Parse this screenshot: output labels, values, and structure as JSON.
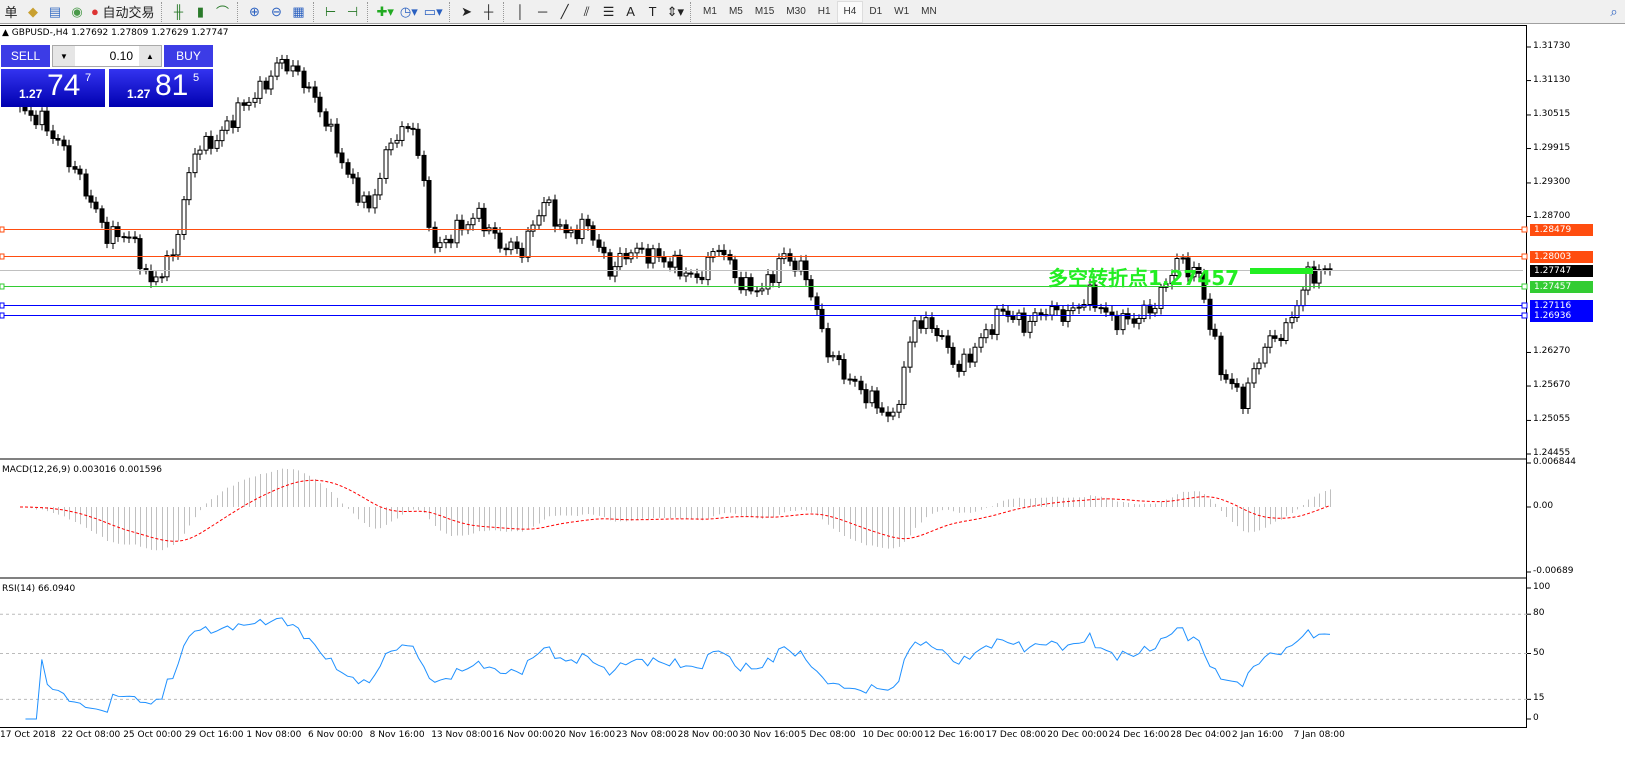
{
  "toolbar": {
    "left_fragment": "单",
    "auto_trade_label": "自动交易",
    "icons": [
      "folder-icon",
      "profile-icon",
      "signal-icon",
      "auto-trade-icon",
      "bar-chart-icon",
      "candlestick-icon",
      "line-chart-icon",
      "zoom-in-icon",
      "zoom-out-icon",
      "tile-windows-icon",
      "chart-shift-icon",
      "autoscroll-icon",
      "new-chart-icon",
      "periods-icon",
      "templates-icon",
      "cursor-icon",
      "crosshair-icon",
      "vertical-line-icon",
      "horizontal-line-icon",
      "trendline-icon",
      "equidistant-channel-icon",
      "fibonacci-icon",
      "text-icon",
      "text-label-icon",
      "arrows-icon",
      "search-icon"
    ],
    "timeframes": [
      "M1",
      "M5",
      "M15",
      "M30",
      "H1",
      "H4",
      "D1",
      "W1",
      "MN"
    ],
    "active_timeframe": "H4"
  },
  "chart": {
    "title": "GBPUSD-,H4  1.27692 1.27809 1.27629 1.27747",
    "pivot_text": "多空转折点1.27457",
    "trade_panel": {
      "sell_label": "SELL",
      "buy_label": "BUY",
      "lot": "0.10",
      "sell_prefix": "1.27",
      "sell_big": "74",
      "sell_sup": "7",
      "buy_prefix": "1.27",
      "buy_big": "81",
      "buy_sup": "5"
    }
  },
  "chart_data": [
    {
      "type": "candlestick",
      "symbol": "GBPUSD-",
      "timeframe": "H4",
      "ylim": [
        1.24455,
        1.3173
      ],
      "y_ticks": [
        "1.31730",
        "1.31130",
        "1.30515",
        "1.29915",
        "1.29300",
        "1.28700",
        "1.26270",
        "1.25670",
        "1.25055",
        "1.24455"
      ],
      "closes": [
        1.306,
        1.3042,
        1.2989,
        1.2917,
        1.2837,
        1.2837,
        1.2748,
        1.2801,
        1.2989,
        1.3007,
        1.306,
        1.3096,
        1.315,
        1.3114,
        1.3042,
        1.2944,
        1.2882,
        1.3007,
        1.3034,
        1.281,
        1.2846,
        1.2873,
        1.2819,
        1.281,
        1.2899,
        1.2837,
        1.2855,
        1.2774,
        1.281,
        1.2801,
        1.2783,
        1.2756,
        1.2819,
        1.2748,
        1.2739,
        1.2801,
        1.2765,
        1.2631,
        1.2578,
        1.2542,
        1.2506,
        1.2685,
        1.2667,
        1.2596,
        1.2649,
        1.2703,
        1.2676,
        1.2703,
        1.2694,
        1.273,
        1.2685,
        1.2685,
        1.2712,
        1.2792,
        1.2765,
        1.2596,
        1.2542,
        1.264,
        1.2667,
        1.2765,
        1.2775
      ],
      "levels": [
        {
          "price": "1.28479",
          "color": "#ff4d0f"
        },
        {
          "price": "1.28003",
          "color": "#ff4d0f"
        },
        {
          "price": "1.27747",
          "color": "#000000",
          "line_color": "#c0c0c0"
        },
        {
          "price": "1.27457",
          "color": "#33cc33"
        },
        {
          "price": "1.27116",
          "color": "#0000ff"
        },
        {
          "price": "1.26936",
          "color": "#0000ff"
        }
      ],
      "x_labels": [
        "17 Oct 2018",
        "22 Oct 08:00",
        "25 Oct 00:00",
        "29 Oct 16:00",
        "1 Nov 08:00",
        "6 Nov 00:00",
        "8 Nov 16:00",
        "13 Nov 08:00",
        "16 Nov 00:00",
        "20 Nov 16:00",
        "23 Nov 08:00",
        "28 Nov 00:00",
        "30 Nov 16:00",
        "5 Dec 08:00",
        "10 Dec 00:00",
        "12 Dec 16:00",
        "17 Dec 08:00",
        "20 Dec 00:00",
        "24 Dec 16:00",
        "28 Dec 04:00",
        "2 Jan 16:00",
        "7 Jan 08:00"
      ]
    },
    {
      "type": "macd",
      "title": "MACD(12,26,9) 0.003016 0.001596",
      "ylim": [
        -0.00689,
        0.006844
      ],
      "y_ticks": [
        "0.006844",
        "0.00",
        "-0.00689"
      ],
      "histogram_color": "#c0c0c0",
      "signal_color": "#ff0000"
    },
    {
      "type": "rsi",
      "title": "RSI(14) 66.0940",
      "ylim": [
        0,
        100
      ],
      "y_ticks": [
        "100",
        "80",
        "50",
        "15",
        "0"
      ],
      "levels": [
        80,
        50,
        15
      ],
      "line_color": "#1e90ff"
    }
  ]
}
